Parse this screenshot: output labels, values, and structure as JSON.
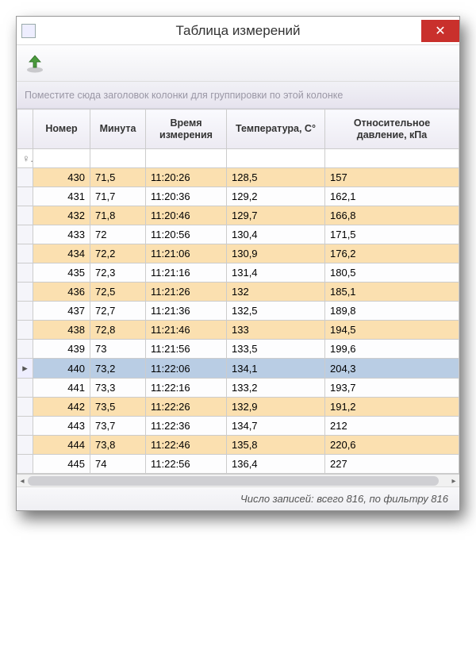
{
  "window": {
    "title": "Таблица измерений"
  },
  "toolbar": {
    "export_icon": "export"
  },
  "group_hint": "Поместите сюда заголовок колонки для группировки по этой колонке",
  "columns": [
    {
      "key": "num",
      "label": "Номер",
      "align": "right"
    },
    {
      "key": "minute",
      "label": "Минута",
      "align": "left"
    },
    {
      "key": "time",
      "label": "Время измерения",
      "align": "left"
    },
    {
      "key": "temp",
      "label": "Температура, С°",
      "align": "left"
    },
    {
      "key": "pres",
      "label": "Относительное давление, кПа",
      "align": "left"
    }
  ],
  "filter_indicator": "♀",
  "selected_num": 440,
  "row_indicator_selected": "▸",
  "stripe_color": "#fbe0b0",
  "selected_color": "#b9cde4",
  "rows": [
    {
      "num": 430,
      "minute": "71,5",
      "time": "11:20:26",
      "temp": "128,5",
      "pres": "157"
    },
    {
      "num": 431,
      "minute": "71,7",
      "time": "11:20:36",
      "temp": "129,2",
      "pres": "162,1"
    },
    {
      "num": 432,
      "minute": "71,8",
      "time": "11:20:46",
      "temp": "129,7",
      "pres": "166,8"
    },
    {
      "num": 433,
      "minute": "72",
      "time": "11:20:56",
      "temp": "130,4",
      "pres": "171,5"
    },
    {
      "num": 434,
      "minute": "72,2",
      "time": "11:21:06",
      "temp": "130,9",
      "pres": "176,2"
    },
    {
      "num": 435,
      "minute": "72,3",
      "time": "11:21:16",
      "temp": "131,4",
      "pres": "180,5"
    },
    {
      "num": 436,
      "minute": "72,5",
      "time": "11:21:26",
      "temp": "132",
      "pres": "185,1"
    },
    {
      "num": 437,
      "minute": "72,7",
      "time": "11:21:36",
      "temp": "132,5",
      "pres": "189,8"
    },
    {
      "num": 438,
      "minute": "72,8",
      "time": "11:21:46",
      "temp": "133",
      "pres": "194,5"
    },
    {
      "num": 439,
      "minute": "73",
      "time": "11:21:56",
      "temp": "133,5",
      "pres": "199,6"
    },
    {
      "num": 440,
      "minute": "73,2",
      "time": "11:22:06",
      "temp": "134,1",
      "pres": "204,3"
    },
    {
      "num": 441,
      "minute": "73,3",
      "time": "11:22:16",
      "temp": "133,2",
      "pres": "193,7"
    },
    {
      "num": 442,
      "minute": "73,5",
      "time": "11:22:26",
      "temp": "132,9",
      "pres": "191,2"
    },
    {
      "num": 443,
      "minute": "73,7",
      "time": "11:22:36",
      "temp": "134,7",
      "pres": "212"
    },
    {
      "num": 444,
      "minute": "73,8",
      "time": "11:22:46",
      "temp": "135,8",
      "pres": "220,6"
    },
    {
      "num": 445,
      "minute": "74",
      "time": "11:22:56",
      "temp": "136,4",
      "pres": "227"
    }
  ],
  "status": "Число записей: всего 816, по фильтру 816"
}
